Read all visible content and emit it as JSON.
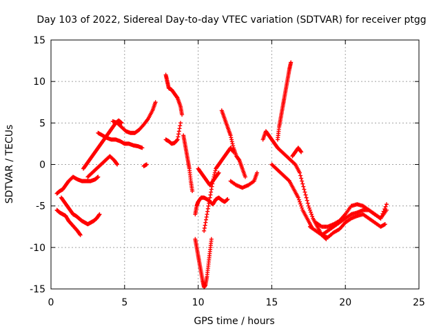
{
  "chart_data": {
    "type": "scatter",
    "title": "Day 103 of 2022, Sidereal Day-to-day VTEC variation (SDTVAR) for receiver ptgg",
    "xlabel": "GPS time / hours",
    "ylabel": "SDTVAR / TECUs",
    "xlim": [
      0,
      25
    ],
    "ylim": [
      -15,
      15
    ],
    "xticks": [
      "0",
      "5",
      "10",
      "15",
      "20",
      "25"
    ],
    "yticks": [
      "15",
      "10",
      "5",
      "0",
      "-5",
      "-10",
      "-15"
    ],
    "grid": true,
    "marker": "+",
    "color": "#ff0000",
    "series": [
      {
        "name": "",
        "x": [
          0.4,
          0.6,
          0.8,
          1.0,
          1.2,
          1.4,
          1.6,
          1.8,
          2.0
        ],
        "y": [
          -5.5,
          -5.8,
          -6.0,
          -6.2,
          -6.8,
          -7.2,
          -7.6,
          -8.0,
          -8.5
        ]
      },
      {
        "name": "",
        "x": [
          0.4,
          0.6,
          0.8,
          1.0,
          1.2,
          1.5,
          1.8,
          2.1,
          2.4,
          2.7,
          3.0,
          3.2
        ],
        "y": [
          -3.5,
          -3.2,
          -3.0,
          -2.5,
          -2.0,
          -1.5,
          -1.8,
          -2.0,
          -2.0,
          -2.0,
          -1.8,
          -1.5
        ]
      },
      {
        "name": "",
        "x": [
          0.7,
          0.9,
          1.1,
          1.3,
          1.5,
          1.7,
          1.9,
          2.1,
          2.3,
          2.5,
          2.7,
          2.9,
          3.1,
          3.3
        ],
        "y": [
          -4.0,
          -4.5,
          -5.0,
          -5.5,
          -6.0,
          -6.2,
          -6.5,
          -6.8,
          -7.0,
          -7.2,
          -7.0,
          -6.8,
          -6.5,
          -6.0
        ]
      },
      {
        "name": "",
        "x": [
          2.2,
          2.4,
          2.6,
          2.8,
          3.0,
          3.2,
          3.4,
          3.6,
          3.8,
          4.0,
          4.2,
          4.4,
          4.6,
          4.8
        ],
        "y": [
          -0.5,
          0.0,
          0.5,
          1.0,
          1.5,
          2.0,
          2.5,
          3.0,
          3.5,
          4.0,
          4.5,
          5.0,
          5.3,
          5.0
        ]
      },
      {
        "name": "",
        "x": [
          4.2,
          4.5,
          4.8,
          5.1,
          5.4,
          5.7,
          6.0,
          6.3,
          6.6,
          6.9,
          7.1
        ],
        "y": [
          5.2,
          5.0,
          4.5,
          4.0,
          3.8,
          3.8,
          4.2,
          4.8,
          5.5,
          6.5,
          7.5
        ]
      },
      {
        "name": "",
        "x": [
          3.2,
          3.5,
          3.8,
          4.1,
          4.4,
          4.7,
          5.0,
          5.3,
          5.6,
          5.9,
          6.2
        ],
        "y": [
          3.8,
          3.5,
          3.2,
          3.0,
          3.0,
          2.8,
          2.5,
          2.5,
          2.3,
          2.2,
          2.0
        ]
      },
      {
        "name": "",
        "x": [
          2.5,
          2.8,
          3.1,
          3.4,
          3.7,
          4.0,
          4.3,
          4.5
        ],
        "y": [
          -1.5,
          -1.0,
          -0.5,
          0.0,
          0.5,
          1.0,
          0.5,
          0.0
        ]
      },
      {
        "name": "",
        "x": [
          6.3,
          6.5
        ],
        "y": [
          -0.2,
          0.0
        ]
      },
      {
        "name": "",
        "x": [
          7.8,
          7.9,
          8.0,
          8.2,
          8.4,
          8.6,
          8.8,
          8.9
        ],
        "y": [
          10.8,
          10.0,
          9.2,
          9.0,
          8.5,
          8.0,
          7.0,
          6.0
        ]
      },
      {
        "name": "",
        "x": [
          7.8,
          8.0,
          8.2,
          8.4,
          8.6,
          8.8
        ],
        "y": [
          3.0,
          2.8,
          2.5,
          2.6,
          3.0,
          5.0
        ]
      },
      {
        "name": "",
        "x": [
          9.0,
          9.1,
          9.2,
          9.3,
          9.4,
          9.5,
          9.6
        ],
        "y": [
          3.5,
          2.5,
          1.5,
          0.5,
          -0.5,
          -2.0,
          -3.2
        ]
      },
      {
        "name": "",
        "x": [
          9.8,
          9.9,
          10.0,
          10.1,
          10.2,
          10.3,
          10.4,
          10.5,
          10.6,
          10.7,
          10.8,
          10.9
        ],
        "y": [
          -9.0,
          -10.0,
          -11.0,
          -12.0,
          -13.0,
          -14.0,
          -14.8,
          -14.5,
          -13.5,
          -12.0,
          -10.5,
          -9.0
        ]
      },
      {
        "name": "",
        "x": [
          9.8,
          9.9,
          10.0,
          10.2,
          10.4,
          10.6,
          10.8,
          11.0,
          11.2,
          11.4,
          11.6,
          11.8,
          12.0
        ],
        "y": [
          -6.0,
          -5.0,
          -4.5,
          -4.0,
          -4.0,
          -4.2,
          -4.5,
          -4.8,
          -4.2,
          -4.0,
          -4.3,
          -4.5,
          -4.2
        ]
      },
      {
        "name": "",
        "x": [
          10.0,
          10.2,
          10.4,
          10.6,
          10.8,
          11.0,
          11.2,
          11.4
        ],
        "y": [
          -0.5,
          -1.0,
          -1.5,
          -2.0,
          -2.5,
          -2.0,
          -1.5,
          -1.0
        ]
      },
      {
        "name": "",
        "x": [
          10.4,
          10.6,
          10.8,
          11.0,
          11.2,
          11.4,
          11.6,
          11.8,
          12.0,
          12.2,
          12.4
        ],
        "y": [
          -8.0,
          -6.0,
          -4.0,
          -2.0,
          -0.5,
          0.0,
          0.5,
          1.0,
          1.5,
          2.0,
          1.5
        ]
      },
      {
        "name": "",
        "x": [
          11.6,
          11.8,
          12.0,
          12.2,
          12.4,
          12.6,
          12.8,
          13.0,
          13.2
        ],
        "y": [
          6.5,
          5.5,
          4.5,
          3.5,
          2.0,
          1.0,
          0.5,
          -0.5,
          -1.5
        ]
      },
      {
        "name": "",
        "x": [
          12.2,
          12.6,
          13.0,
          13.4,
          13.8,
          14.0
        ],
        "y": [
          -2.0,
          -2.5,
          -2.8,
          -2.5,
          -2.0,
          -1.0
        ]
      },
      {
        "name": "",
        "x": [
          14.4,
          14.6,
          14.8,
          15.0,
          15.2,
          15.4
        ],
        "y": [
          3.0,
          4.0,
          3.5,
          3.0,
          2.5,
          2.0
        ]
      },
      {
        "name": "",
        "x": [
          15.4,
          15.5,
          15.6,
          15.7,
          15.8,
          15.9,
          16.0,
          16.1,
          16.2,
          16.3
        ],
        "y": [
          3.0,
          4.5,
          5.5,
          6.5,
          7.5,
          8.5,
          9.5,
          10.5,
          11.5,
          12.3
        ]
      },
      {
        "name": "",
        "x": [
          15.0,
          15.3,
          15.6,
          15.9,
          16.2,
          16.5,
          16.8,
          17.1,
          17.4,
          17.7
        ],
        "y": [
          0.0,
          -0.5,
          -1.0,
          -1.5,
          -2.0,
          -3.0,
          -4.0,
          -5.5,
          -6.5,
          -7.5
        ]
      },
      {
        "name": "",
        "x": [
          15.4,
          15.7,
          16.0,
          16.3,
          16.6,
          16.9,
          17.2,
          17.5,
          17.8,
          18.1,
          18.4,
          18.7
        ],
        "y": [
          2.0,
          1.5,
          1.0,
          0.5,
          0.0,
          -1.0,
          -3.0,
          -5.0,
          -6.5,
          -7.5,
          -8.5,
          -9.0
        ]
      },
      {
        "name": "",
        "x": [
          16.4,
          16.6,
          16.8,
          17.0
        ],
        "y": [
          1.0,
          1.5,
          2.0,
          1.5
        ]
      },
      {
        "name": "",
        "x": [
          18.4,
          18.8,
          19.2,
          19.6,
          20.0,
          20.4,
          20.8,
          21.2,
          21.6,
          22.0,
          22.4,
          22.8
        ],
        "y": [
          -8.5,
          -8.0,
          -7.5,
          -7.0,
          -6.5,
          -6.0,
          -5.8,
          -5.5,
          -5.5,
          -6.0,
          -6.5,
          -5.5
        ]
      },
      {
        "name": "",
        "x": [
          18.0,
          18.4,
          18.8,
          19.2,
          19.6,
          20.0,
          20.4,
          20.8,
          21.2,
          21.6,
          22.0,
          22.4,
          22.8
        ],
        "y": [
          -7.0,
          -7.5,
          -7.5,
          -7.2,
          -6.8,
          -6.0,
          -5.0,
          -4.8,
          -5.0,
          -5.5,
          -6.0,
          -6.5,
          -4.8
        ]
      },
      {
        "name": "",
        "x": [
          17.6,
          18.0,
          18.4,
          18.8,
          19.2,
          19.6,
          20.0,
          20.4,
          20.8,
          21.2,
          21.6,
          22.0,
          22.4,
          22.7
        ],
        "y": [
          -7.5,
          -8.0,
          -8.5,
          -8.8,
          -8.2,
          -7.8,
          -7.0,
          -6.5,
          -6.2,
          -6.0,
          -6.5,
          -7.0,
          -7.5,
          -7.2
        ]
      }
    ]
  }
}
